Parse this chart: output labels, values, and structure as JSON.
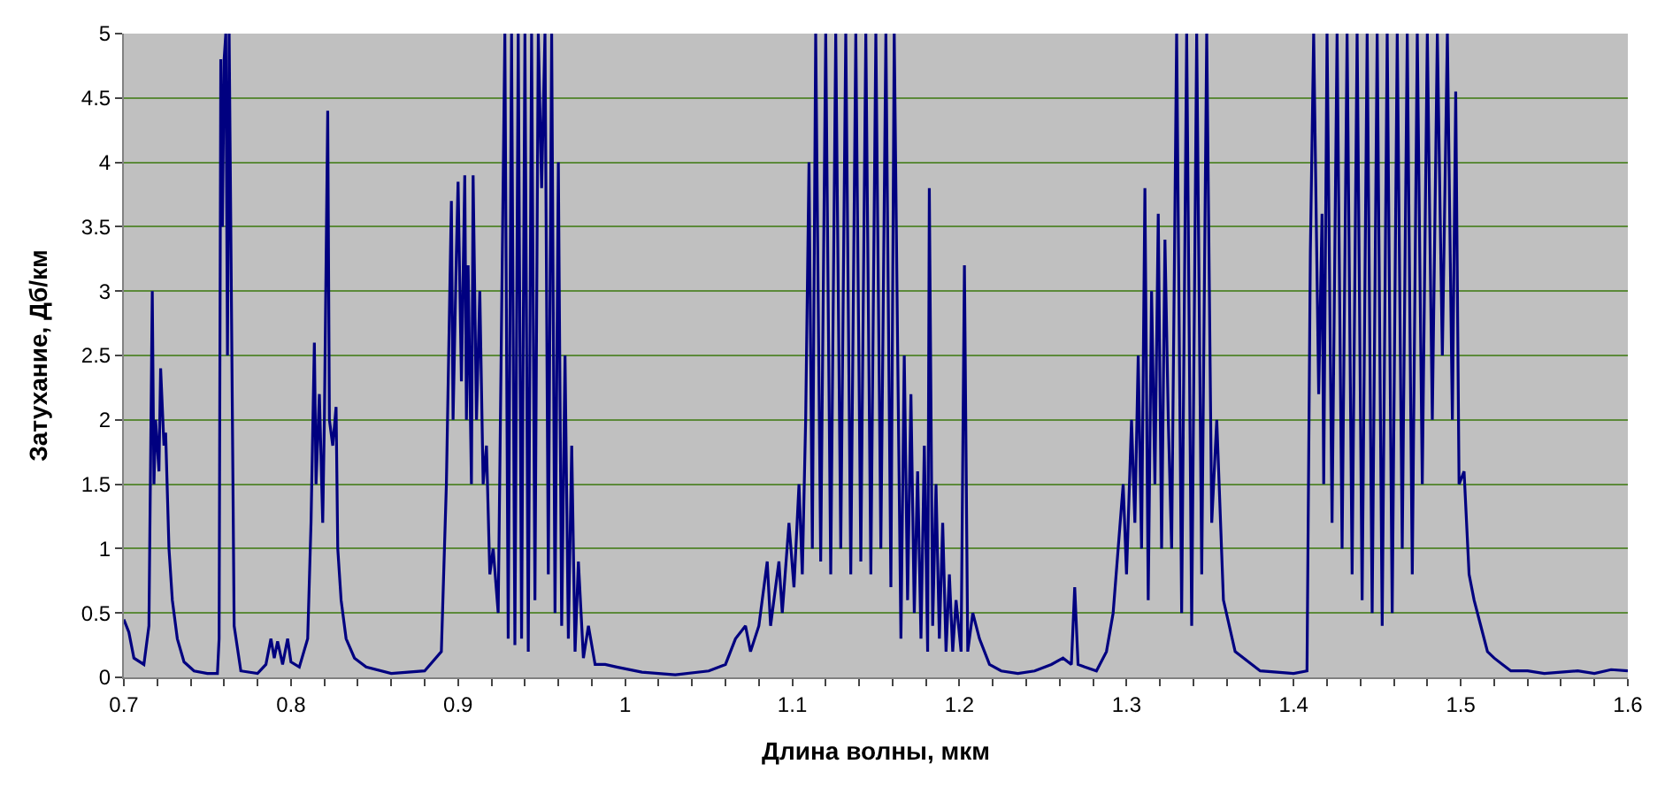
{
  "chart_data": {
    "type": "line",
    "xlabel": "Длина волны, мкм",
    "ylabel": "Затухание, Дб/км",
    "x": [
      0.7,
      0.703,
      0.706,
      0.712,
      0.715,
      0.717,
      0.718,
      0.719,
      0.721,
      0.722,
      0.724,
      0.725,
      0.727,
      0.729,
      0.732,
      0.736,
      0.742,
      0.75,
      0.756,
      0.757,
      0.758,
      0.759,
      0.76,
      0.761,
      0.762,
      0.763,
      0.764,
      0.766,
      0.77,
      0.78,
      0.785,
      0.788,
      0.79,
      0.792,
      0.795,
      0.798,
      0.8,
      0.805,
      0.81,
      0.812,
      0.814,
      0.815,
      0.817,
      0.819,
      0.82,
      0.822,
      0.823,
      0.825,
      0.827,
      0.828,
      0.83,
      0.833,
      0.838,
      0.845,
      0.86,
      0.88,
      0.89,
      0.893,
      0.896,
      0.897,
      0.899,
      0.9,
      0.902,
      0.904,
      0.905,
      0.906,
      0.908,
      0.909,
      0.911,
      0.913,
      0.915,
      0.917,
      0.919,
      0.921,
      0.924,
      0.928,
      0.93,
      0.932,
      0.934,
      0.936,
      0.938,
      0.94,
      0.942,
      0.944,
      0.946,
      0.948,
      0.95,
      0.952,
      0.954,
      0.956,
      0.958,
      0.96,
      0.962,
      0.964,
      0.966,
      0.968,
      0.97,
      0.972,
      0.975,
      0.978,
      0.982,
      0.988,
      0.995,
      1.01,
      1.03,
      1.05,
      1.06,
      1.066,
      1.072,
      1.075,
      1.08,
      1.085,
      1.087,
      1.092,
      1.094,
      1.098,
      1.101,
      1.104,
      1.106,
      1.108,
      1.11,
      1.112,
      1.114,
      1.117,
      1.12,
      1.123,
      1.126,
      1.129,
      1.132,
      1.135,
      1.138,
      1.141,
      1.144,
      1.147,
      1.15,
      1.153,
      1.156,
      1.159,
      1.161,
      1.163,
      1.165,
      1.167,
      1.169,
      1.171,
      1.173,
      1.175,
      1.177,
      1.179,
      1.181,
      1.182,
      1.184,
      1.186,
      1.188,
      1.19,
      1.192,
      1.194,
      1.196,
      1.198,
      1.201,
      1.203,
      1.205,
      1.208,
      1.212,
      1.218,
      1.225,
      1.235,
      1.245,
      1.255,
      1.262,
      1.267,
      1.269,
      1.271,
      1.275,
      1.282,
      1.288,
      1.292,
      1.295,
      1.298,
      1.3,
      1.303,
      1.305,
      1.307,
      1.309,
      1.311,
      1.313,
      1.315,
      1.317,
      1.319,
      1.321,
      1.323,
      1.325,
      1.327,
      1.33,
      1.333,
      1.336,
      1.339,
      1.342,
      1.345,
      1.348,
      1.351,
      1.354,
      1.358,
      1.365,
      1.38,
      1.4,
      1.408,
      1.41,
      1.412,
      1.415,
      1.417,
      1.418,
      1.42,
      1.423,
      1.426,
      1.429,
      1.432,
      1.435,
      1.438,
      1.441,
      1.444,
      1.447,
      1.45,
      1.453,
      1.456,
      1.459,
      1.462,
      1.465,
      1.468,
      1.471,
      1.474,
      1.477,
      1.48,
      1.483,
      1.486,
      1.489,
      1.492,
      1.495,
      1.497,
      1.499,
      1.502,
      1.505,
      1.508,
      1.512,
      1.516,
      1.52,
      1.525,
      1.53,
      1.54,
      1.55,
      1.57,
      1.58,
      1.59,
      1.6
    ],
    "series": [
      {
        "color": "#000080",
        "values": [
          0.45,
          0.35,
          0.15,
          0.1,
          0.4,
          3.0,
          1.5,
          2.0,
          1.6,
          2.4,
          1.8,
          1.9,
          1.0,
          0.6,
          0.3,
          0.12,
          0.05,
          0.03,
          0.03,
          0.3,
          4.8,
          3.5,
          4.8,
          5,
          2.5,
          5,
          3.5,
          0.4,
          0.05,
          0.03,
          0.1,
          0.3,
          0.15,
          0.28,
          0.1,
          0.3,
          0.12,
          0.08,
          0.3,
          1.2,
          2.6,
          1.5,
          2.2,
          1.2,
          2.0,
          4.4,
          2.0,
          1.8,
          2.1,
          1.0,
          0.6,
          0.3,
          0.15,
          0.08,
          0.03,
          0.05,
          0.2,
          1.5,
          3.7,
          2.0,
          3.3,
          3.85,
          2.3,
          3.9,
          2.0,
          3.2,
          1.5,
          3.9,
          2.0,
          3.0,
          1.5,
          1.8,
          0.8,
          1.0,
          0.5,
          5,
          0.3,
          5,
          0.25,
          5,
          0.3,
          5,
          0.2,
          5,
          0.6,
          5,
          3.8,
          5,
          0.8,
          5,
          0.5,
          4.0,
          0.4,
          2.5,
          0.3,
          1.8,
          0.2,
          0.9,
          0.15,
          0.4,
          0.1,
          0.1,
          0.08,
          0.04,
          0.02,
          0.05,
          0.1,
          0.3,
          0.4,
          0.2,
          0.4,
          0.9,
          0.4,
          0.9,
          0.5,
          1.2,
          0.7,
          1.5,
          0.8,
          2.0,
          4.0,
          1.0,
          5,
          0.9,
          5,
          0.8,
          5,
          1.0,
          5,
          0.8,
          5,
          0.9,
          5,
          0.8,
          5,
          1.0,
          5,
          0.7,
          5,
          2.6,
          0.3,
          2.5,
          0.6,
          2.2,
          0.5,
          1.6,
          0.3,
          1.8,
          0.2,
          3.8,
          0.4,
          1.5,
          0.3,
          1.2,
          0.2,
          0.8,
          0.2,
          0.6,
          0.2,
          3.2,
          0.2,
          0.5,
          0.3,
          0.1,
          0.05,
          0.03,
          0.05,
          0.1,
          0.15,
          0.1,
          0.7,
          0.1,
          0.08,
          0.05,
          0.2,
          0.5,
          1.0,
          1.5,
          0.8,
          2.0,
          1.2,
          2.5,
          1.0,
          3.8,
          0.6,
          3.0,
          1.5,
          3.6,
          1.0,
          3.4,
          2.0,
          1.0,
          5,
          0.5,
          5,
          0.4,
          5,
          0.8,
          5,
          1.2,
          2.0,
          0.6,
          0.2,
          0.05,
          0.03,
          0.05,
          3.3,
          5,
          2.2,
          3.6,
          1.5,
          5,
          1.2,
          5,
          1.0,
          5,
          0.8,
          5,
          0.6,
          5,
          0.5,
          5,
          0.4,
          5,
          0.5,
          5,
          1.0,
          5,
          0.8,
          5,
          1.5,
          5,
          2.0,
          5,
          2.5,
          5,
          2.0,
          4.55,
          1.5,
          1.6,
          0.8,
          0.6,
          0.4,
          0.2,
          0.15,
          0.1,
          0.05,
          0.05,
          0.03,
          0.05,
          0.03,
          0.06,
          0.05
        ]
      }
    ],
    "xlim": [
      0.7,
      1.6
    ],
    "xticks": [
      0.7,
      {
        "value": 0.72,
        "label": null
      },
      {
        "value": 0.74,
        "label": null
      },
      {
        "value": 0.76,
        "label": null
      },
      {
        "value": 0.78,
        "label": null
      },
      0.8,
      {
        "value": 0.82,
        "label": null
      },
      {
        "value": 0.84,
        "label": null
      },
      {
        "value": 0.86,
        "label": null
      },
      {
        "value": 0.88,
        "label": null
      },
      0.9,
      {
        "value": 0.92,
        "label": null
      },
      {
        "value": 0.94,
        "label": null
      },
      {
        "value": 0.96,
        "label": null
      },
      {
        "value": 0.98,
        "label": null
      },
      1,
      {
        "value": 1.02,
        "label": null
      },
      {
        "value": 1.04,
        "label": null
      },
      {
        "value": 1.06,
        "label": null
      },
      {
        "value": 1.08,
        "label": null
      },
      1.1,
      {
        "value": 1.12,
        "label": null
      },
      {
        "value": 1.14,
        "label": null
      },
      {
        "value": 1.16,
        "label": null
      },
      {
        "value": 1.18,
        "label": null
      },
      1.2,
      {
        "value": 1.22,
        "label": null
      },
      {
        "value": 1.24,
        "label": null
      },
      {
        "value": 1.26,
        "label": null
      },
      {
        "value": 1.28,
        "label": null
      },
      1.3,
      {
        "value": 1.32,
        "label": null
      },
      {
        "value": 1.34,
        "label": null
      },
      {
        "value": 1.36,
        "label": null
      },
      {
        "value": 1.38,
        "label": null
      },
      1.4,
      {
        "value": 1.42,
        "label": null
      },
      {
        "value": 1.44,
        "label": null
      },
      {
        "value": 1.46,
        "label": null
      },
      {
        "value": 1.48,
        "label": null
      },
      1.5,
      {
        "value": 1.52,
        "label": null
      },
      {
        "value": 1.54,
        "label": null
      },
      {
        "value": 1.56,
        "label": null
      },
      {
        "value": 1.58,
        "label": null
      },
      1.6
    ],
    "ylim": [
      0,
      5
    ],
    "yticks": [
      0,
      0.5,
      1,
      1.5,
      2,
      2.5,
      3,
      3.5,
      4,
      4.5,
      5
    ],
    "grid": "y",
    "legend": false,
    "marker": "none",
    "line_style": "solid"
  }
}
